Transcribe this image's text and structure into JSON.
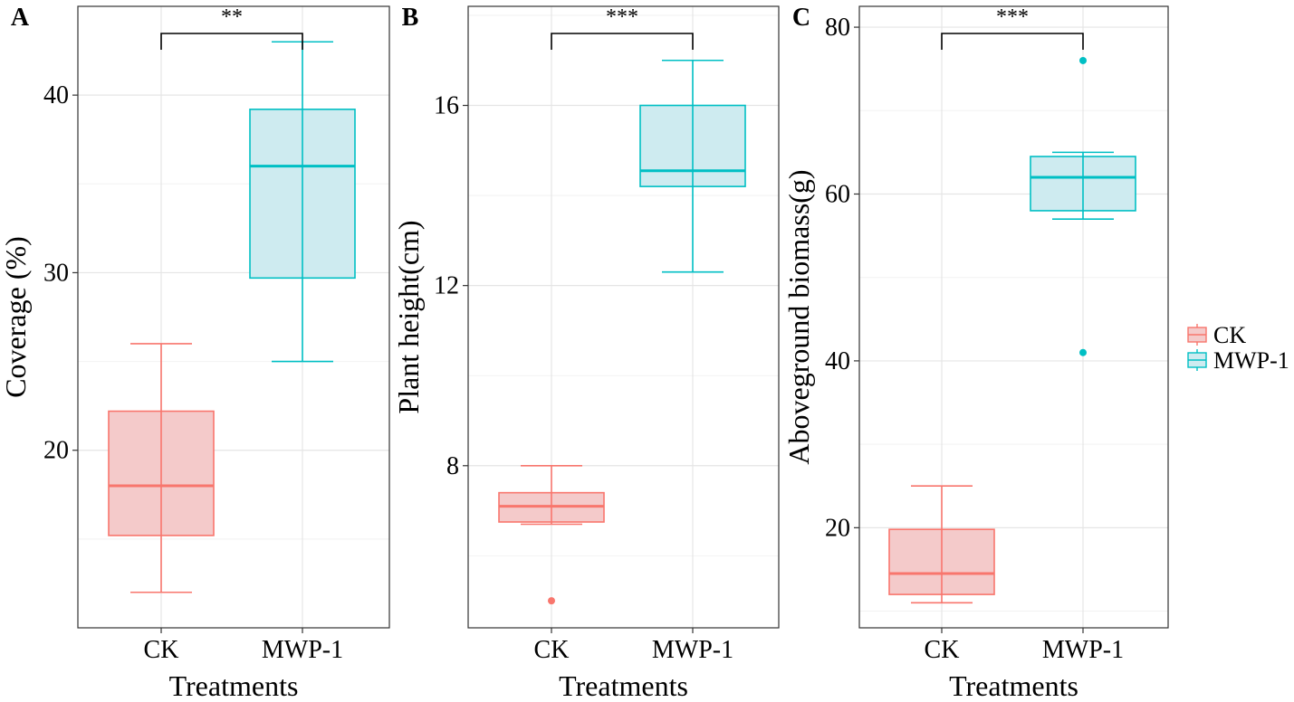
{
  "chart_data": [
    {
      "panel": "A",
      "type": "box",
      "xlabel": "Treatments",
      "ylabel": "Coverage (%)",
      "categories": [
        "CK",
        "MWP-1"
      ],
      "ylim": [
        10,
        45
      ],
      "yticks": [
        20,
        30,
        40
      ],
      "grid": true,
      "boxes": [
        {
          "name": "CK",
          "min": 12,
          "q1": 15.2,
          "median": 18,
          "q3": 22.2,
          "max": 26,
          "outliers": []
        },
        {
          "name": "MWP-1",
          "min": 25,
          "q1": 29.7,
          "median": 36,
          "q3": 39.2,
          "max": 43,
          "outliers": []
        }
      ],
      "significance": "**"
    },
    {
      "panel": "B",
      "type": "box",
      "xlabel": "Treatments",
      "ylabel": "Plant height(cm)",
      "categories": [
        "CK",
        "MWP-1"
      ],
      "ylim": [
        4.4,
        18.2
      ],
      "yticks": [
        8,
        12,
        16
      ],
      "grid": true,
      "boxes": [
        {
          "name": "CK",
          "min": 6.7,
          "q1": 6.75,
          "median": 7.1,
          "q3": 7.4,
          "max": 8,
          "outliers": [
            5
          ]
        },
        {
          "name": "MWP-1",
          "min": 12.3,
          "q1": 14.2,
          "median": 14.55,
          "q3": 16,
          "max": 17,
          "outliers": []
        }
      ],
      "significance": "***"
    },
    {
      "panel": "C",
      "type": "box",
      "xlabel": "Treatments",
      "ylabel": "Aboveground biomass(g)",
      "categories": [
        "CK",
        "MWP-1"
      ],
      "ylim": [
        8,
        82.5
      ],
      "yticks": [
        20,
        40,
        60,
        80
      ],
      "grid": true,
      "boxes": [
        {
          "name": "CK",
          "min": 11,
          "q1": 12,
          "median": 14.5,
          "q3": 19.8,
          "max": 25,
          "outliers": []
        },
        {
          "name": "MWP-1",
          "min": 57,
          "q1": 58,
          "median": 62,
          "q3": 64.5,
          "max": 65,
          "outliers": [
            76,
            41
          ]
        }
      ],
      "significance": "***"
    }
  ],
  "legend": {
    "position": "right",
    "items": [
      {
        "label": "CK",
        "color": "#F8766D",
        "fill": "#F4CACA"
      },
      {
        "label": "MWP-1",
        "color": "#00BFC4",
        "fill": "#CEEBF0"
      }
    ]
  }
}
